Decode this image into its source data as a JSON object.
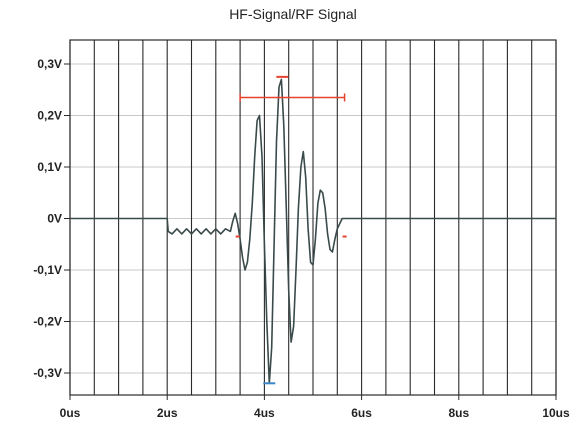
{
  "chart_data": {
    "type": "line",
    "title": "HF-Signal/RF Signal",
    "xlabel": "",
    "ylabel": "",
    "x_unit": "us",
    "y_unit": "V",
    "xlim": [
      0,
      10
    ],
    "ylim": [
      -0.35,
      0.35
    ],
    "grid": true,
    "x_gridlines": [
      0,
      0.5,
      1,
      1.5,
      2,
      2.5,
      3,
      3.5,
      4,
      4.5,
      5,
      5.5,
      6,
      6.5,
      7,
      7.5,
      8,
      8.5,
      9,
      9.5,
      10
    ],
    "y_ticks": [
      {
        "value": 0.3,
        "label": "0,3V"
      },
      {
        "value": 0.2,
        "label": "0,2V"
      },
      {
        "value": 0.1,
        "label": "0,1V"
      },
      {
        "value": 0,
        "label": "0V"
      },
      {
        "value": -0.1,
        "label": "-0,1V"
      },
      {
        "value": -0.2,
        "label": "-0,2V"
      },
      {
        "value": -0.3,
        "label": "-0,3V"
      }
    ],
    "x_ticks": [
      {
        "value": 0,
        "label": "0us"
      },
      {
        "value": 2,
        "label": "2us"
      },
      {
        "value": 4,
        "label": "4us"
      },
      {
        "value": 6,
        "label": "6us"
      },
      {
        "value": 8,
        "label": "8us"
      },
      {
        "value": 10,
        "label": "10us"
      }
    ],
    "series": [
      {
        "color": "#3a4a4a",
        "x": [
          0,
          2.0,
          2.02,
          2.1,
          2.2,
          2.3,
          2.4,
          2.5,
          2.6,
          2.7,
          2.8,
          2.9,
          3.0,
          3.1,
          3.2,
          3.3,
          3.35,
          3.4,
          3.45,
          3.5,
          3.55,
          3.6,
          3.65,
          3.7,
          3.75,
          3.8,
          3.85,
          3.9,
          3.95,
          4.0,
          4.05,
          4.1,
          4.15,
          4.2,
          4.25,
          4.3,
          4.35,
          4.4,
          4.45,
          4.5,
          4.55,
          4.6,
          4.65,
          4.7,
          4.75,
          4.8,
          4.85,
          4.9,
          4.95,
          5.0,
          5.05,
          5.1,
          5.15,
          5.2,
          5.25,
          5.3,
          5.35,
          5.4,
          5.45,
          5.5,
          5.55,
          5.6,
          5.65,
          5.7,
          5.75,
          5.8,
          5.85,
          5.9,
          10
        ],
        "y": [
          0,
          0,
          -0.025,
          -0.03,
          -0.02,
          -0.03,
          -0.02,
          -0.03,
          -0.02,
          -0.03,
          -0.02,
          -0.03,
          -0.02,
          -0.03,
          -0.02,
          -0.025,
          -0.005,
          0.01,
          -0.01,
          -0.04,
          -0.075,
          -0.1,
          -0.085,
          -0.04,
          0.03,
          0.12,
          0.19,
          0.2,
          0.12,
          -0.05,
          -0.2,
          -0.32,
          -0.25,
          -0.05,
          0.15,
          0.255,
          0.27,
          0.18,
          0.02,
          -0.14,
          -0.24,
          -0.21,
          -0.1,
          0.02,
          0.1,
          0.13,
          0.08,
          -0.02,
          -0.085,
          -0.09,
          -0.04,
          0.03,
          0.055,
          0.05,
          0.02,
          -0.03,
          -0.06,
          -0.065,
          -0.04,
          -0.02,
          -0.01,
          0,
          0,
          0,
          0,
          0,
          0,
          0,
          0
        ]
      }
    ],
    "annotations": [
      {
        "type": "horizontal-range",
        "color": "#e8412e",
        "x_start": 3.5,
        "x_end": 5.65,
        "y": 0.235
      },
      {
        "type": "peak-marker",
        "color": "#e8412e",
        "x": 4.37,
        "y": 0.275
      },
      {
        "type": "trough-marker",
        "color": "#3a86c8",
        "x": 4.1,
        "y": -0.32
      },
      {
        "type": "crossing-marker",
        "color": "#e8412e",
        "x": 3.45,
        "y": -0.035
      },
      {
        "type": "crossing-marker",
        "color": "#e8412e",
        "x": 5.65,
        "y": -0.035
      }
    ]
  }
}
